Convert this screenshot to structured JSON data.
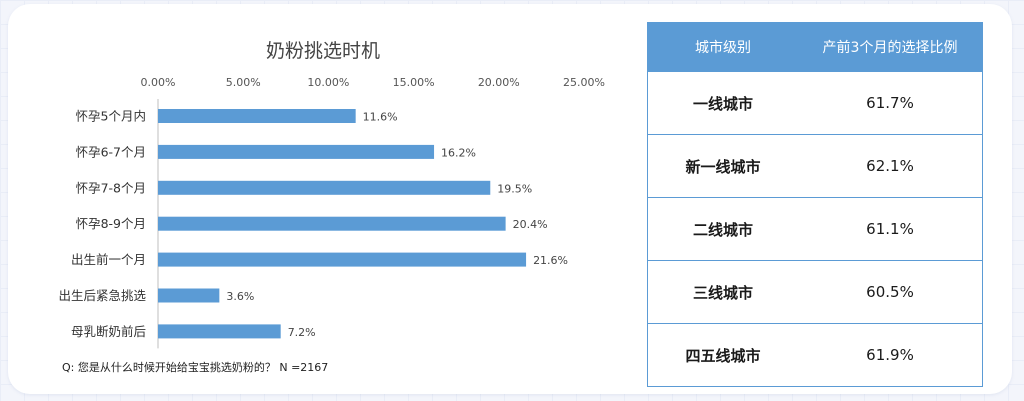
{
  "chart_data": {
    "type": "bar",
    "orientation": "horizontal",
    "title": "奶粉挑选时机",
    "categories": [
      "怀孕5个月内",
      "怀孕6-7个月",
      "怀孕7-8个月",
      "怀孕8-9个月",
      "出生前一个月",
      "出生后紧急挑选",
      "母乳断奶前后"
    ],
    "values": [
      11.6,
      16.2,
      19.5,
      20.4,
      21.6,
      3.6,
      7.2
    ],
    "value_labels": [
      "11.6%",
      "16.2%",
      "19.5%",
      "20.4%",
      "21.6%",
      "3.6%",
      "7.2%"
    ],
    "xlim": [
      0,
      25
    ],
    "xticks": [
      0,
      5,
      10,
      15,
      20,
      25
    ],
    "xtick_labels": [
      "0.00%",
      "5.00%",
      "10.00%",
      "15.00%",
      "20.00%",
      "25.00%"
    ],
    "axis_position": "top",
    "grid": false,
    "bar_color": "#5b9bd5",
    "footnote": "Q:  您是从什么时候开始给宝宝挑选奶粉的？ N =2167"
  },
  "table": {
    "headers": [
      "城市级别",
      "产前3个月的选择比例"
    ],
    "rows": [
      {
        "city": "一线城市",
        "value": "61.7%"
      },
      {
        "city": "新一线城市",
        "value": "62.1%"
      },
      {
        "city": "二线城市",
        "value": "61.1%"
      },
      {
        "city": "三线城市",
        "value": "60.5%"
      },
      {
        "city": "四五线城市",
        "value": "61.9%"
      }
    ],
    "header_color": "#5b9bd5"
  }
}
